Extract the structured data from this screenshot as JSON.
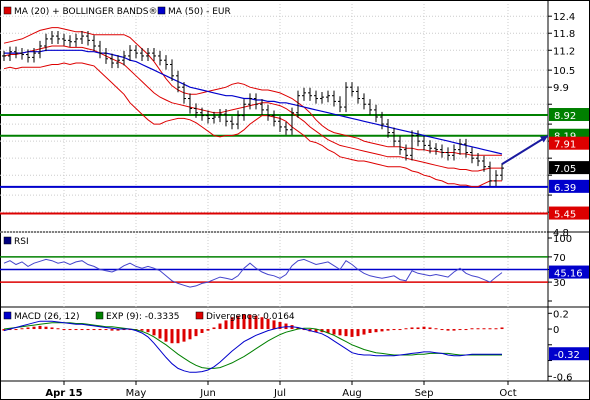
{
  "chart_data": [
    {
      "type": "ohlc",
      "title": "",
      "legend": [
        {
          "label": "MA (20) + BOLLINGER BANDS®",
          "color": "#dd0000"
        },
        {
          "label": "MA (50) - EUR",
          "color": "#0000cc"
        }
      ],
      "x_labels": [
        "Apr 15",
        "May",
        "Jun",
        "Jul",
        "Aug",
        "Sep",
        "Oct"
      ],
      "x_label_bold": "Apr 15",
      "y_ticks": [
        12.4,
        11.8,
        11.2,
        10.5,
        9.9,
        9.3,
        8.6,
        8.0,
        7.4,
        6.8,
        6.1,
        5.5,
        4.8
      ],
      "y_tick_labels": [
        "12.4",
        "11.8",
        "11.2",
        "10.5",
        "9.9",
        "",
        "",
        "",
        "",
        "",
        "",
        "",
        "4.8"
      ],
      "ylim": [
        4.8,
        12.9
      ],
      "price_series": {
        "name": "Price",
        "color": "#000000",
        "values": [
          11.0,
          11.15,
          11.1,
          11.05,
          10.95,
          11.1,
          11.35,
          11.6,
          11.7,
          11.6,
          11.55,
          11.5,
          11.6,
          11.7,
          11.55,
          11.35,
          11.1,
          10.9,
          10.75,
          10.85,
          11.0,
          11.2,
          11.1,
          11.0,
          11.1,
          11.0,
          10.85,
          10.7,
          10.3,
          9.9,
          9.5,
          9.15,
          9.0,
          8.9,
          8.8,
          8.85,
          8.95,
          8.7,
          8.6,
          8.9,
          9.3,
          9.5,
          9.3,
          9.1,
          8.9,
          8.7,
          8.5,
          8.4,
          9.0,
          9.6,
          9.7,
          9.6,
          9.5,
          9.55,
          9.6,
          9.4,
          9.2,
          9.9,
          9.75,
          9.5,
          9.3,
          9.1,
          8.85,
          8.6,
          8.3,
          8.0,
          7.7,
          7.5,
          8.2,
          8.0,
          7.85,
          7.75,
          7.7,
          7.6,
          7.5,
          7.7,
          7.9,
          7.6,
          7.4,
          7.3,
          7.1,
          6.6,
          6.8,
          7.05
        ]
      },
      "ma20": {
        "name": "MA (20)",
        "color": "#dd0000",
        "values": [
          11.0,
          11.05,
          11.05,
          11.1,
          11.15,
          11.2,
          11.25,
          11.3,
          11.35,
          11.35,
          11.35,
          11.3,
          11.3,
          11.3,
          11.25,
          11.2,
          11.1,
          11.0,
          10.9,
          10.8,
          10.7,
          10.5,
          10.3,
          10.1,
          9.9,
          9.7,
          9.55,
          9.45,
          9.35,
          9.3,
          9.25,
          9.2,
          9.15,
          9.1,
          9.05,
          9.0,
          9.0,
          9.05,
          9.1,
          9.15,
          9.2,
          9.25,
          9.3,
          9.35,
          9.35,
          9.3,
          9.25,
          9.15,
          9.0,
          8.85,
          8.7,
          8.5,
          8.35,
          8.2,
          8.05,
          7.95,
          7.85,
          7.8,
          7.75,
          7.7,
          7.65,
          7.6,
          7.55,
          7.5,
          7.45,
          7.45,
          7.45,
          7.4,
          7.35,
          7.3,
          7.25,
          7.2,
          7.15,
          7.1,
          7.05,
          7.05,
          7.0,
          7.0,
          6.95,
          6.95,
          7.0,
          7.05,
          7.05,
          7.05
        ]
      },
      "bb_upper": {
        "name": "Bollinger upper",
        "color": "#dd0000",
        "values": [
          11.45,
          11.5,
          11.55,
          11.6,
          11.7,
          11.8,
          11.9,
          11.95,
          12.0,
          12.0,
          11.95,
          11.9,
          11.85,
          11.85,
          11.8,
          11.75,
          11.75,
          11.75,
          11.75,
          11.75,
          11.75,
          11.65,
          11.45,
          11.25,
          11.05,
          10.8,
          10.5,
          10.2,
          9.95,
          9.8,
          9.7,
          9.65,
          9.65,
          9.7,
          9.75,
          9.8,
          9.85,
          9.9,
          10.0,
          10.05,
          10.0,
          9.9,
          9.85,
          9.8,
          9.8,
          9.75,
          9.7,
          9.6,
          9.5,
          9.35,
          9.2,
          9.0,
          8.75,
          8.55,
          8.4,
          8.3,
          8.25,
          8.2,
          8.15,
          8.1,
          8.0,
          7.95,
          7.9,
          7.85,
          7.8,
          7.8,
          7.8,
          7.75,
          7.75,
          7.7,
          7.7,
          7.65,
          7.65,
          7.6,
          7.6,
          7.6,
          7.55,
          7.55,
          7.5,
          7.5,
          7.5,
          7.5,
          7.5,
          7.5
        ]
      },
      "bb_lower": {
        "name": "Bollinger lower",
        "color": "#dd0000",
        "values": [
          10.55,
          10.6,
          10.55,
          10.6,
          10.6,
          10.6,
          10.6,
          10.65,
          10.7,
          10.7,
          10.75,
          10.7,
          10.75,
          10.75,
          10.7,
          10.65,
          10.45,
          10.25,
          10.05,
          9.85,
          9.65,
          9.35,
          9.15,
          8.95,
          8.75,
          8.6,
          8.6,
          8.7,
          8.75,
          8.8,
          8.8,
          8.75,
          8.65,
          8.5,
          8.35,
          8.2,
          8.15,
          8.2,
          8.2,
          8.25,
          8.4,
          8.6,
          8.75,
          8.9,
          8.9,
          8.85,
          8.8,
          8.7,
          8.5,
          8.35,
          8.2,
          8.0,
          7.95,
          7.85,
          7.7,
          7.6,
          7.45,
          7.4,
          7.35,
          7.3,
          7.3,
          7.25,
          7.2,
          7.15,
          7.1,
          7.1,
          7.1,
          7.05,
          6.95,
          6.9,
          6.8,
          6.75,
          6.65,
          6.6,
          6.5,
          6.5,
          6.45,
          6.45,
          6.4,
          6.4,
          6.5,
          6.6,
          6.6,
          6.6
        ]
      },
      "ma50": {
        "name": "MA (50)",
        "color": "#0000cc",
        "values": [
          11.1,
          11.1,
          11.1,
          11.1,
          11.15,
          11.15,
          11.15,
          11.2,
          11.2,
          11.2,
          11.2,
          11.2,
          11.2,
          11.2,
          11.15,
          11.15,
          11.1,
          11.1,
          11.05,
          11.0,
          10.95,
          10.85,
          10.8,
          10.7,
          10.6,
          10.5,
          10.4,
          10.3,
          10.2,
          10.1,
          10.0,
          9.9,
          9.85,
          9.8,
          9.75,
          9.7,
          9.65,
          9.6,
          9.6,
          9.55,
          9.5,
          9.5,
          9.45,
          9.45,
          9.4,
          9.4,
          9.35,
          9.35,
          9.3,
          9.25,
          9.2,
          9.15,
          9.1,
          9.05,
          9.0,
          8.95,
          8.9,
          8.85,
          8.8,
          8.75,
          8.7,
          8.65,
          8.6,
          8.55,
          8.5,
          8.45,
          8.4,
          8.35,
          8.3,
          8.25,
          8.2,
          8.15,
          8.1,
          8.05,
          8.0,
          7.95,
          7.9,
          7.85,
          7.8,
          7.75,
          7.7,
          7.65,
          7.6,
          7.55
        ]
      },
      "horizontal_lines": [
        {
          "value": 8.92,
          "label": "8.92",
          "color": "#008000"
        },
        {
          "value": 8.19,
          "label": "8.19",
          "color": "#008000"
        },
        {
          "value": 6.39,
          "label": "6.39",
          "color": "#0000cc"
        },
        {
          "value": 5.45,
          "label": "5.45",
          "color": "#dd0000"
        }
      ],
      "value_tags": [
        {
          "value": 7.91,
          "label": "7.91",
          "color": "#dd0000"
        },
        {
          "value": 7.05,
          "label": "7.05",
          "color": "#000000"
        }
      ],
      "arrow": {
        "from_index": 83,
        "from_value": 7.05,
        "to_index": 91,
        "to_value": 8.19,
        "color": "#1a1aa0"
      }
    },
    {
      "type": "line",
      "title": "RSI",
      "legend": [
        {
          "label": "RSI",
          "color": "#000080"
        }
      ],
      "y_ticks": [
        100,
        70,
        50,
        30,
        0
      ],
      "y_tick_labels": [
        "100",
        "70",
        "",
        "30",
        ""
      ],
      "ylim": [
        0,
        100
      ],
      "series": [
        {
          "name": "RSI",
          "color": "#4444cc",
          "values": [
            60,
            64,
            58,
            62,
            55,
            60,
            63,
            66,
            64,
            60,
            62,
            58,
            62,
            64,
            58,
            55,
            50,
            48,
            46,
            50,
            56,
            60,
            55,
            52,
            55,
            52,
            48,
            40,
            32,
            28,
            25,
            22,
            24,
            28,
            30,
            34,
            38,
            36,
            34,
            40,
            52,
            60,
            52,
            46,
            42,
            40,
            36,
            42,
            56,
            64,
            66,
            62,
            58,
            60,
            62,
            56,
            50,
            64,
            58,
            50,
            44,
            40,
            38,
            36,
            38,
            40,
            34,
            32,
            48,
            44,
            42,
            40,
            42,
            40,
            38,
            46,
            52,
            44,
            40,
            38,
            34,
            30,
            38,
            45
          ]
        }
      ],
      "horizontal_lines": [
        {
          "value": 70,
          "color": "#008000"
        },
        {
          "value": 50,
          "color": "#0000cc"
        },
        {
          "value": 30,
          "color": "#dd0000"
        }
      ],
      "value_tags": [
        {
          "value": 45.16,
          "label": "45.16",
          "color": "#0000cc"
        }
      ]
    },
    {
      "type": "line",
      "title": "MACD",
      "legend": [
        {
          "label": "MACD (26, 12)",
          "color": "#0000cc"
        },
        {
          "label": "EXP (9): -0.3335",
          "color": "#008000"
        },
        {
          "label": "Divergence: 0.0164",
          "color": "#dd0000"
        }
      ],
      "x_labels": [
        "Apr 15",
        "May",
        "Jun",
        "Jul",
        "Aug",
        "Sep",
        "Oct"
      ],
      "y_ticks": [
        0.2,
        0,
        -0.2,
        -0.4,
        -0.6
      ],
      "y_tick_labels": [
        "0.2",
        "0",
        "",
        "",
        "-0.6"
      ],
      "ylim": [
        -0.66,
        0.28
      ],
      "series": [
        {
          "name": "MACD",
          "color": "#0000cc",
          "values": [
            -0.02,
            0.0,
            0.02,
            0.04,
            0.06,
            0.08,
            0.1,
            0.1,
            0.1,
            0.09,
            0.08,
            0.07,
            0.06,
            0.06,
            0.05,
            0.04,
            0.03,
            0.02,
            0.01,
            0.0,
            0.0,
            0.0,
            -0.02,
            -0.05,
            -0.1,
            -0.18,
            -0.27,
            -0.36,
            -0.44,
            -0.5,
            -0.53,
            -0.55,
            -0.55,
            -0.54,
            -0.52,
            -0.48,
            -0.42,
            -0.35,
            -0.28,
            -0.22,
            -0.16,
            -0.12,
            -0.08,
            -0.05,
            -0.02,
            0.0,
            0.02,
            0.03,
            0.03,
            0.02,
            0.0,
            -0.02,
            -0.04,
            -0.06,
            -0.1,
            -0.15,
            -0.2,
            -0.25,
            -0.3,
            -0.32,
            -0.33,
            -0.33,
            -0.34,
            -0.34,
            -0.34,
            -0.34,
            -0.33,
            -0.32,
            -0.31,
            -0.3,
            -0.29,
            -0.29,
            -0.3,
            -0.31,
            -0.33,
            -0.34,
            -0.34,
            -0.33,
            -0.32,
            -0.32,
            -0.32,
            -0.32,
            -0.32,
            -0.32
          ]
        },
        {
          "name": "EXP (9)",
          "color": "#008000",
          "values": [
            0.0,
            0.01,
            0.02,
            0.03,
            0.04,
            0.05,
            0.06,
            0.07,
            0.08,
            0.08,
            0.08,
            0.08,
            0.07,
            0.07,
            0.06,
            0.05,
            0.04,
            0.03,
            0.03,
            0.02,
            0.01,
            0.0,
            -0.01,
            -0.03,
            -0.06,
            -0.1,
            -0.15,
            -0.2,
            -0.26,
            -0.32,
            -0.37,
            -0.42,
            -0.46,
            -0.49,
            -0.5,
            -0.5,
            -0.49,
            -0.46,
            -0.43,
            -0.39,
            -0.35,
            -0.3,
            -0.25,
            -0.2,
            -0.15,
            -0.11,
            -0.07,
            -0.04,
            -0.02,
            0.0,
            0.01,
            0.01,
            0.0,
            -0.02,
            -0.05,
            -0.08,
            -0.12,
            -0.16,
            -0.2,
            -0.23,
            -0.26,
            -0.28,
            -0.3,
            -0.31,
            -0.32,
            -0.33,
            -0.33,
            -0.33,
            -0.33,
            -0.32,
            -0.32,
            -0.31,
            -0.31,
            -0.31,
            -0.31,
            -0.32,
            -0.33,
            -0.33,
            -0.33,
            -0.33,
            -0.33,
            -0.33,
            -0.33,
            -0.33
          ]
        },
        {
          "name": "Divergence",
          "color": "#dd0000",
          "kind": "histogram",
          "values": [
            -0.02,
            -0.01,
            0.0,
            0.01,
            0.02,
            0.03,
            0.04,
            0.03,
            0.02,
            0.01,
            0.0,
            -0.01,
            -0.01,
            -0.01,
            -0.01,
            -0.01,
            -0.01,
            -0.01,
            -0.02,
            -0.02,
            -0.01,
            0.0,
            -0.01,
            -0.02,
            -0.04,
            -0.08,
            -0.12,
            -0.16,
            -0.18,
            -0.18,
            -0.16,
            -0.13,
            -0.09,
            -0.05,
            -0.02,
            0.02,
            0.07,
            0.11,
            0.15,
            0.17,
            0.19,
            0.18,
            0.17,
            0.15,
            0.13,
            0.11,
            0.09,
            0.07,
            0.05,
            0.02,
            -0.01,
            -0.03,
            -0.04,
            -0.04,
            -0.05,
            -0.07,
            -0.08,
            -0.09,
            -0.1,
            -0.09,
            -0.07,
            -0.05,
            -0.04,
            -0.03,
            -0.02,
            -0.01,
            0.0,
            0.01,
            0.02,
            0.02,
            0.03,
            0.02,
            0.01,
            0.0,
            -0.02,
            -0.02,
            -0.01,
            0.0,
            0.01,
            0.01,
            0.01,
            0.01,
            0.01,
            0.02
          ]
        }
      ],
      "value_tags": [
        {
          "value": -0.32,
          "label": "-0.32",
          "color": "#0000cc"
        }
      ]
    }
  ]
}
